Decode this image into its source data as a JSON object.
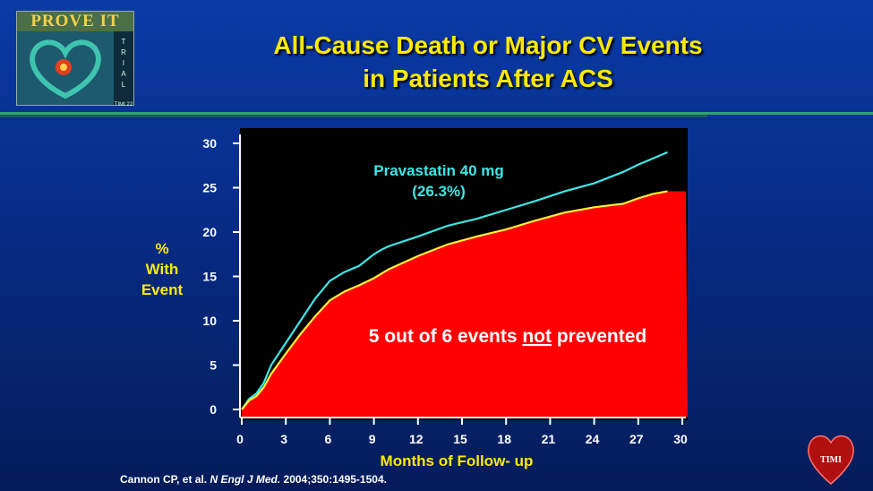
{
  "logo": {
    "name": "PROVE IT",
    "side": [
      "T",
      "R",
      "I",
      "A",
      "L"
    ],
    "sub": "TIMI 22"
  },
  "title_line1": "All-Cause Death or Major CV Events",
  "title_line2": "in Patients After ACS",
  "citation": {
    "authors": "Cannon CP, et al.",
    "journal": "N Engl J Med.",
    "ref": "2004;350:1495-1504."
  },
  "tmi_logo": "TIMI",
  "colors": {
    "title": "#ffea00",
    "pravastatin": "#3ee6e6",
    "atorvastatin": "#ffee33",
    "fill": "#ff0000",
    "plot_bg": "#000000"
  },
  "chart_data": {
    "type": "line",
    "xlabel": "Months of Follow- up",
    "ylabel": [
      "%",
      "With",
      "Event"
    ],
    "xlim": [
      0,
      30
    ],
    "ylim": [
      0,
      30
    ],
    "xticks": [
      0,
      3,
      6,
      9,
      12,
      15,
      18,
      21,
      24,
      27,
      30
    ],
    "yticks": [
      0,
      5,
      10,
      15,
      20,
      25,
      30
    ],
    "grid": false,
    "series": [
      {
        "name": "Pravastatin 40 mg",
        "label": "(26.3%)",
        "x": [
          0,
          0.5,
          1,
          1.5,
          2,
          3,
          4,
          5,
          6,
          7,
          8,
          9,
          9.5,
          10,
          12,
          14,
          16,
          18,
          20,
          22,
          24,
          26,
          27,
          28,
          29
        ],
        "y": [
          0,
          1.2,
          1.8,
          3,
          5,
          7.5,
          10,
          12.5,
          14.5,
          15.5,
          16.2,
          17.5,
          18,
          18.4,
          19.5,
          20.7,
          21.5,
          22.5,
          23.5,
          24.6,
          25.5,
          26.8,
          27.6,
          28.3,
          29
        ]
      },
      {
        "x": [
          0,
          0.5,
          1,
          1.5,
          2,
          3,
          4,
          5,
          6,
          7,
          8,
          9,
          10,
          12,
          14,
          16,
          18,
          20,
          22,
          24,
          26,
          27,
          28,
          29
        ],
        "y": [
          0,
          1.0,
          1.5,
          2.5,
          4,
          6.3,
          8.5,
          10.5,
          12.3,
          13.3,
          14,
          14.8,
          15.8,
          17.3,
          18.6,
          19.5,
          20.3,
          21.3,
          22.2,
          22.8,
          23.2,
          23.8,
          24.3,
          24.6
        ]
      }
    ],
    "annotation": {
      "pre": "5 out of 6 events ",
      "underlined": "not",
      "post": " prevented"
    }
  }
}
